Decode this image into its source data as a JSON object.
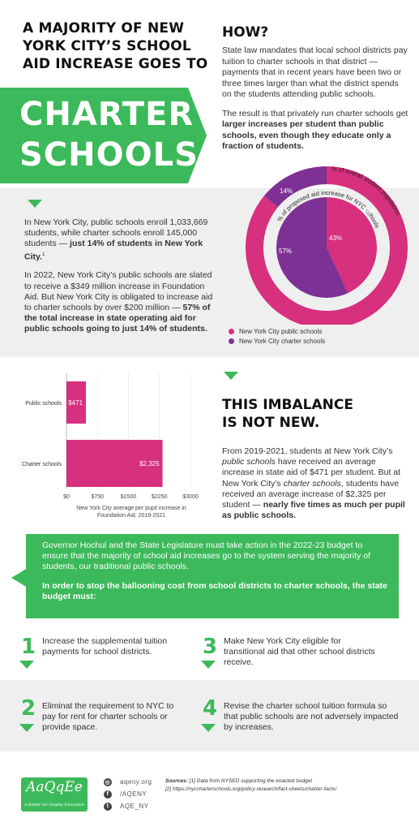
{
  "header": {
    "headline": "A MAJORITY OF NEW YORK CITY’S SCHOOL AID INCREASE GOES TO",
    "banner_line1": "CHARTER",
    "banner_line2": "SCHOOLS."
  },
  "how": {
    "title": "HOW?",
    "p1": "State law mandates that local school districts pay tuition to charter schools in that district — payments that in recent years have been two or three times larger than what the district spends on the students attending public schools.",
    "p2_a": "The result is that privately run charter schools get ",
    "p2_b": "larger increases per student than public schools, even though they educate only a fraction of students."
  },
  "nyc": {
    "p1_a": "In New York City,  public schools enroll 1,033,669 students, while charter schools enroll 145,000 students — ",
    "p1_b": "just 14% of students in New York City.",
    "p1_sup": "1",
    "p2_a": "In 2022, New York City’s public schools are slated to receive a $349 million increase in Foundation Aid. But New York City is obligated to increase aid to charter schools by over $200 million — ",
    "p2_b": "57% of the total increase in state operating aid for public schools going to just 14% of students."
  },
  "donut": {
    "outer_label": "% of overall student population",
    "inner_label": "% of proposed aid increase for NYC schools",
    "outer_values": [
      "86%",
      "14%"
    ],
    "inner_values": [
      "43%",
      "57%"
    ],
    "colors": {
      "public": "#d6307e",
      "charter": "#7d3194"
    },
    "legend": [
      "New York City public schools",
      "New York City charter schools"
    ]
  },
  "chart_data": [
    {
      "type": "pie",
      "title": "",
      "labels": [
        "New York City public schools",
        "New York City charter schools"
      ],
      "series": [
        {
          "name": "% of overall student population",
          "values": [
            86,
            14
          ]
        },
        {
          "name": "% of proposed aid increase for NYC schools",
          "values": [
            43,
            57
          ]
        }
      ]
    },
    {
      "type": "bar",
      "orientation": "horizontal",
      "categories": [
        "Public schools",
        "Charter schools"
      ],
      "values": [
        471,
        2325
      ],
      "value_labels": [
        "$471",
        "$2,325"
      ],
      "xlabel": "New York City average per pupil increase in Foundation Aid, 2019-2021",
      "xlim": [
        0,
        3000
      ],
      "xticks": [
        "$0",
        "$750",
        "$1500",
        "$2250",
        "$3000"
      ],
      "color": "#d6307e"
    }
  ],
  "imbalance": {
    "title_line1": "THIS IMBALANCE",
    "title_line2": "IS NOT NEW.",
    "t1": "From 2019-2021, students at New York City’s ",
    "t2": "public schools",
    "t3": " have received an average increase in state aid of $471 per student. But at New York City’s ",
    "t4": "charter schools",
    "t5": ", students have received an average increase of $2,325 per student — ",
    "t6": "nearly five times as much per pupil as public schools."
  },
  "callout": {
    "p1": "Governor Hochul and the State Legislature must take action in the 2022-23 budget to ensure that the majority of school aid increases go to the system serving the majority of students, our traditional public schools.",
    "p2": "In order to stop the ballooning cost from school districts to charter schools, the state budget must:"
  },
  "steps": [
    {
      "num": "1",
      "text": "Increase the supplemental tuition payments for school districts."
    },
    {
      "num": "3",
      "text": "Make New York City eligible for transitional aid that other school districts receive."
    },
    {
      "num": "2",
      "text": "Eliminat the requirement to NYC to pay for rent for charter schools or provide space."
    },
    {
      "num": "4",
      "text": "Revise the charter school tuition formula so that public schools are not adversely impacted by increases."
    }
  ],
  "footer": {
    "logo": "AaQqEe",
    "logo_tag": "A Better for Quality Education",
    "web": "aqeny.org",
    "facebook": "/AQENY",
    "twitter": "AQE_NY",
    "sources_label": "Sources:",
    "source1": " [1] Data from NYSED supporting the enacted budget",
    "source2": "[2] https://nyccharterschools.org/policy-research/fact-sheets/charter-facts/"
  }
}
